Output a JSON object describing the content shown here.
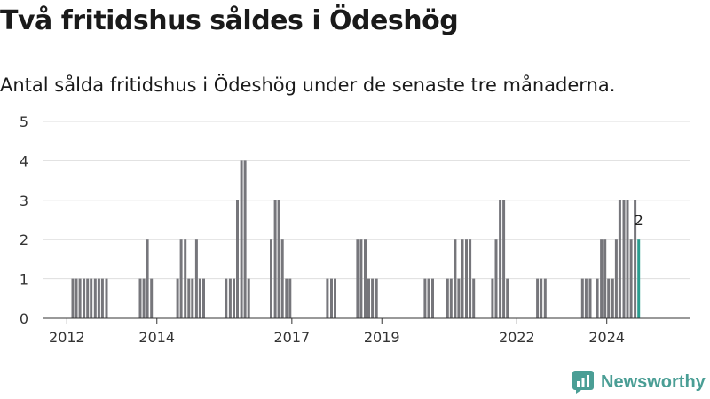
{
  "header": {
    "title": "Två fritidshus såldes i Ödeshög",
    "subtitle": "Antal sålda fritidshus i Ödeshög under de senaste tre månaderna."
  },
  "brand": {
    "name": "Newsworthy",
    "icon": "newsworthy-logo-icon",
    "color": "#4a9e95"
  },
  "chart_data": {
    "type": "bar",
    "ylim": [
      0,
      5
    ],
    "yticks": [
      0,
      1,
      2,
      3,
      4,
      5
    ],
    "xticks": [
      {
        "label": "2012",
        "year": 2012
      },
      {
        "label": "2014",
        "year": 2014
      },
      {
        "label": "2017",
        "year": 2017
      },
      {
        "label": "2019",
        "year": 2019
      },
      {
        "label": "2022",
        "year": 2022
      },
      {
        "label": "2024",
        "year": 2024
      }
    ],
    "grid": true,
    "bar_color": "#76767b",
    "highlight_color": "#2a9d8f",
    "highlight_label": "2",
    "bars": [
      {
        "t": 2012.13,
        "v": 1
      },
      {
        "t": 2012.21,
        "v": 1
      },
      {
        "t": 2012.29,
        "v": 1
      },
      {
        "t": 2012.38,
        "v": 1
      },
      {
        "t": 2012.46,
        "v": 1
      },
      {
        "t": 2012.54,
        "v": 1
      },
      {
        "t": 2012.63,
        "v": 1
      },
      {
        "t": 2012.71,
        "v": 1
      },
      {
        "t": 2012.79,
        "v": 1
      },
      {
        "t": 2012.88,
        "v": 1
      },
      {
        "t": 2013.63,
        "v": 1
      },
      {
        "t": 2013.71,
        "v": 1
      },
      {
        "t": 2013.79,
        "v": 2
      },
      {
        "t": 2013.88,
        "v": 1
      },
      {
        "t": 2014.46,
        "v": 1
      },
      {
        "t": 2014.54,
        "v": 2
      },
      {
        "t": 2014.63,
        "v": 2
      },
      {
        "t": 2014.71,
        "v": 1
      },
      {
        "t": 2014.79,
        "v": 1
      },
      {
        "t": 2014.88,
        "v": 2
      },
      {
        "t": 2014.96,
        "v": 1
      },
      {
        "t": 2015.04,
        "v": 1
      },
      {
        "t": 2015.54,
        "v": 1
      },
      {
        "t": 2015.63,
        "v": 1
      },
      {
        "t": 2015.71,
        "v": 1
      },
      {
        "t": 2015.79,
        "v": 3
      },
      {
        "t": 2015.88,
        "v": 4
      },
      {
        "t": 2015.96,
        "v": 4
      },
      {
        "t": 2016.04,
        "v": 1
      },
      {
        "t": 2016.54,
        "v": 2
      },
      {
        "t": 2016.63,
        "v": 3
      },
      {
        "t": 2016.71,
        "v": 3
      },
      {
        "t": 2016.79,
        "v": 2
      },
      {
        "t": 2016.88,
        "v": 1
      },
      {
        "t": 2016.96,
        "v": 1
      },
      {
        "t": 2017.79,
        "v": 1
      },
      {
        "t": 2017.88,
        "v": 1
      },
      {
        "t": 2017.96,
        "v": 1
      },
      {
        "t": 2018.46,
        "v": 2
      },
      {
        "t": 2018.54,
        "v": 2
      },
      {
        "t": 2018.63,
        "v": 2
      },
      {
        "t": 2018.71,
        "v": 1
      },
      {
        "t": 2018.79,
        "v": 1
      },
      {
        "t": 2018.88,
        "v": 1
      },
      {
        "t": 2019.96,
        "v": 1
      },
      {
        "t": 2020.04,
        "v": 1
      },
      {
        "t": 2020.13,
        "v": 1
      },
      {
        "t": 2020.46,
        "v": 1
      },
      {
        "t": 2020.54,
        "v": 1
      },
      {
        "t": 2020.63,
        "v": 2
      },
      {
        "t": 2020.71,
        "v": 1
      },
      {
        "t": 2020.79,
        "v": 2
      },
      {
        "t": 2020.88,
        "v": 2
      },
      {
        "t": 2020.96,
        "v": 2
      },
      {
        "t": 2021.04,
        "v": 1
      },
      {
        "t": 2021.46,
        "v": 1
      },
      {
        "t": 2021.54,
        "v": 2
      },
      {
        "t": 2021.63,
        "v": 3
      },
      {
        "t": 2021.71,
        "v": 3
      },
      {
        "t": 2021.79,
        "v": 1
      },
      {
        "t": 2022.46,
        "v": 1
      },
      {
        "t": 2022.54,
        "v": 1
      },
      {
        "t": 2022.63,
        "v": 1
      },
      {
        "t": 2023.46,
        "v": 1
      },
      {
        "t": 2023.54,
        "v": 1
      },
      {
        "t": 2023.63,
        "v": 1
      },
      {
        "t": 2023.79,
        "v": 1
      },
      {
        "t": 2023.88,
        "v": 2
      },
      {
        "t": 2023.96,
        "v": 2
      },
      {
        "t": 2024.04,
        "v": 1
      },
      {
        "t": 2024.13,
        "v": 1
      },
      {
        "t": 2024.21,
        "v": 2
      },
      {
        "t": 2024.29,
        "v": 3
      },
      {
        "t": 2024.38,
        "v": 3
      },
      {
        "t": 2024.46,
        "v": 3
      },
      {
        "t": 2024.54,
        "v": 2
      },
      {
        "t": 2024.63,
        "v": 3
      },
      {
        "t": 2024.71,
        "v": 2,
        "highlight": true
      }
    ]
  }
}
